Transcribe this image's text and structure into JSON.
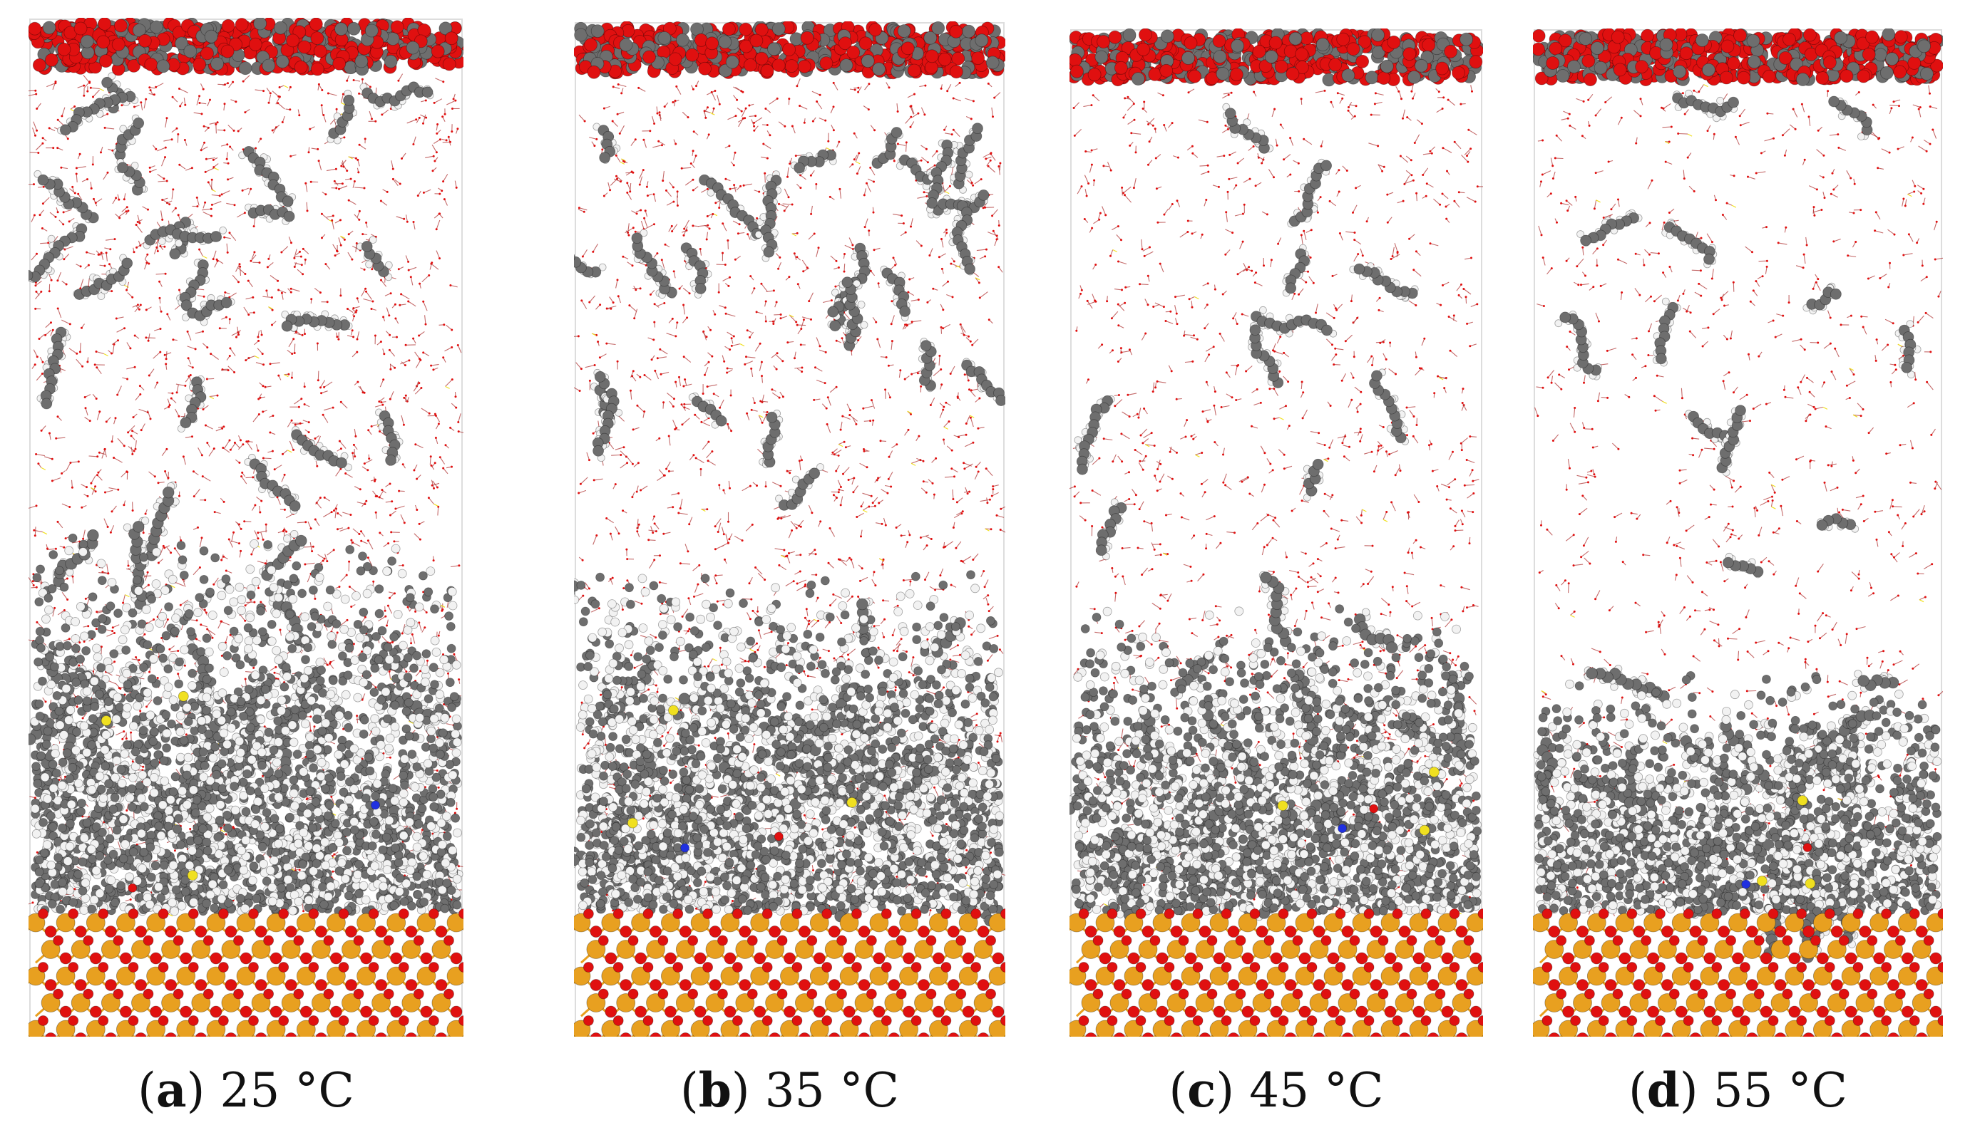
{
  "figure": {
    "panels": [
      {
        "letter": "a",
        "label": "25 °C",
        "water_count": 1500,
        "dispersed_count": 22,
        "cluster_count": 34,
        "cluster_top": 0.52
      },
      {
        "letter": "b",
        "label": "35 °C",
        "water_count": 1250,
        "dispersed_count": 24,
        "cluster_count": 32,
        "cluster_top": 0.55
      },
      {
        "letter": "c",
        "label": "45 °C",
        "water_count": 950,
        "dispersed_count": 10,
        "cluster_count": 30,
        "cluster_top": 0.6
      },
      {
        "letter": "d",
        "label": "55 °C",
        "water_count": 700,
        "dispersed_count": 12,
        "cluster_count": 26,
        "cluster_top": 0.68
      }
    ],
    "colors": {
      "oxygen": "#e01010",
      "carbon": "#6e6e6e",
      "hydrogen": "#f2f2f2",
      "silicon": "#e8a020",
      "water_line": "#b03838",
      "sulfur": "#f0e020",
      "nitrogen": "#2030e0"
    }
  }
}
